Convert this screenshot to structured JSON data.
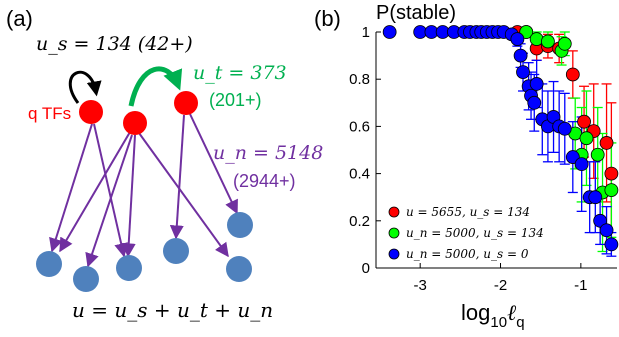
{
  "panel_a": {
    "label": "(a)",
    "us_text": "u_s = 134 (42+)",
    "ut_text": "u_t = 373",
    "ut_sub": "(201+)",
    "un_text": "u_n = 5148",
    "un_sub": "(2944+)",
    "tf_label": "q TFs",
    "equation": "u = u_s + u_t + u_n",
    "colors": {
      "tf": "#ff0000",
      "target": "#4f81bd",
      "edge": "#7030a0",
      "green": "#00b050",
      "black": "#000000"
    }
  },
  "chart_data": {
    "panel_label": "(b)",
    "title": "P(stable)",
    "type": "scatter",
    "xlabel": "log10 ℓq",
    "xlim": [
      -3.55,
      -0.55
    ],
    "ylim": [
      0,
      1
    ],
    "xticks": [
      -3,
      -2,
      -1
    ],
    "xtick_labels": [
      "-3",
      "-2",
      "-1"
    ],
    "yticks": [
      0,
      0.2,
      0.4,
      0.6,
      0.8,
      1
    ],
    "ytick_labels": [
      "0",
      "0.2",
      "0.4",
      "0.6",
      "0.8",
      "1"
    ],
    "legend_position": "bottom-left",
    "series": [
      {
        "name": "u = 5655, u_s = 134",
        "color": "#ff0000",
        "points": [
          {
            "x": -1.79,
            "y": 1.0,
            "err": 0.02
          },
          {
            "x": -1.68,
            "y": 1.0,
            "err": 0.02
          },
          {
            "x": -1.55,
            "y": 0.93,
            "err": 0.05
          },
          {
            "x": -1.41,
            "y": 0.94,
            "err": 0.05
          },
          {
            "x": -1.27,
            "y": 0.93,
            "err": 0.06
          },
          {
            "x": -1.1,
            "y": 0.82,
            "err": 0.1
          },
          {
            "x": -0.96,
            "y": 0.62,
            "err": 0.15
          },
          {
            "x": -0.84,
            "y": 0.58,
            "err": 0.2
          },
          {
            "x": -0.68,
            "y": 0.53,
            "err": 0.25
          },
          {
            "x": -0.62,
            "y": 0.4,
            "err": 0.3
          }
        ]
      },
      {
        "name": "u_n = 5000, u_s = 134",
        "color": "#00ff00",
        "points": [
          {
            "x": -1.68,
            "y": 1.0,
            "err": 0.02
          },
          {
            "x": -1.55,
            "y": 0.97,
            "err": 0.03
          },
          {
            "x": -1.41,
            "y": 0.96,
            "err": 0.04
          },
          {
            "x": -1.24,
            "y": 0.92,
            "err": 0.06
          },
          {
            "x": -1.2,
            "y": 0.95,
            "err": 0.05
          },
          {
            "x": -1.07,
            "y": 0.57,
            "err": 0.15
          },
          {
            "x": -0.99,
            "y": 0.48,
            "err": 0.2
          },
          {
            "x": -0.93,
            "y": 0.55,
            "err": 0.2
          },
          {
            "x": -0.79,
            "y": 0.48,
            "err": 0.2
          },
          {
            "x": -0.73,
            "y": 0.32,
            "err": 0.25
          },
          {
            "x": -0.62,
            "y": 0.33,
            "err": 0.2
          }
        ]
      },
      {
        "name": "u_n = 5000, u_s = 0",
        "color": "#0000ff",
        "points": [
          {
            "x": -3.38,
            "y": 1.0,
            "err": 0.01
          },
          {
            "x": -3.0,
            "y": 1.0,
            "err": 0.01
          },
          {
            "x": -2.86,
            "y": 1.0,
            "err": 0.01
          },
          {
            "x": -2.72,
            "y": 1.0,
            "err": 0.01
          },
          {
            "x": -2.58,
            "y": 1.0,
            "err": 0.01
          },
          {
            "x": -2.45,
            "y": 1.0,
            "err": 0.01
          },
          {
            "x": -2.38,
            "y": 1.0,
            "err": 0.01
          },
          {
            "x": -2.3,
            "y": 1.0,
            "err": 0.01
          },
          {
            "x": -2.24,
            "y": 1.0,
            "err": 0.01
          },
          {
            "x": -2.17,
            "y": 1.0,
            "err": 0.01
          },
          {
            "x": -2.1,
            "y": 1.0,
            "err": 0.01
          },
          {
            "x": -2.03,
            "y": 1.0,
            "err": 0.01
          },
          {
            "x": -1.96,
            "y": 1.0,
            "err": 0.01
          },
          {
            "x": -1.86,
            "y": 0.99,
            "err": 0.02
          },
          {
            "x": -1.79,
            "y": 0.97,
            "err": 0.03
          },
          {
            "x": -1.75,
            "y": 0.9,
            "err": 0.05
          },
          {
            "x": -1.72,
            "y": 0.83,
            "err": 0.08
          },
          {
            "x": -1.65,
            "y": 0.77,
            "err": 0.1
          },
          {
            "x": -1.62,
            "y": 0.73,
            "err": 0.1
          },
          {
            "x": -1.58,
            "y": 0.7,
            "err": 0.12
          },
          {
            "x": -1.55,
            "y": 0.78,
            "err": 0.1
          },
          {
            "x": -1.48,
            "y": 0.63,
            "err": 0.15
          },
          {
            "x": -1.41,
            "y": 0.6,
            "err": 0.15
          },
          {
            "x": -1.34,
            "y": 0.64,
            "err": 0.15
          },
          {
            "x": -1.27,
            "y": 0.6,
            "err": 0.15
          },
          {
            "x": -1.2,
            "y": 0.59,
            "err": 0.15
          },
          {
            "x": -1.1,
            "y": 0.47,
            "err": 0.15
          },
          {
            "x": -0.99,
            "y": 0.44,
            "err": 0.2
          },
          {
            "x": -0.89,
            "y": 0.3,
            "err": 0.15
          },
          {
            "x": -0.82,
            "y": 0.3,
            "err": 0.15
          },
          {
            "x": -0.76,
            "y": 0.2,
            "err": 0.1
          },
          {
            "x": -0.68,
            "y": 0.16,
            "err": 0.1
          },
          {
            "x": -0.62,
            "y": 0.1,
            "err": 0.05
          }
        ]
      }
    ]
  }
}
